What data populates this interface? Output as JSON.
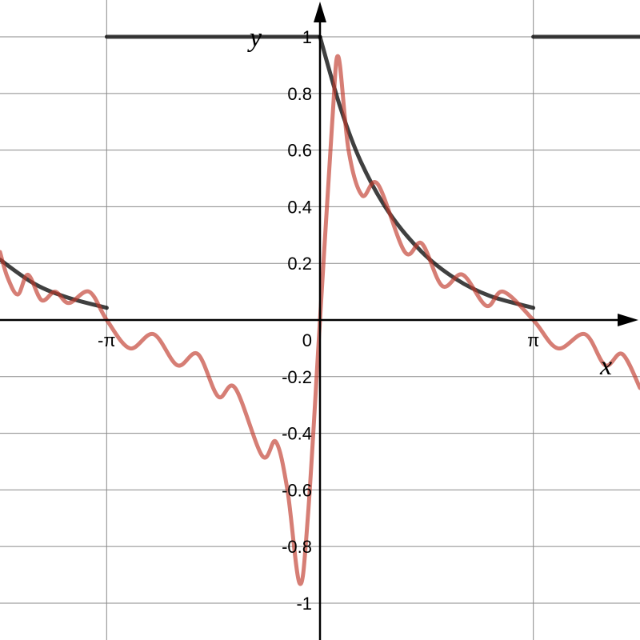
{
  "chart_data": {
    "type": "line",
    "title": "",
    "xlabel": "x",
    "ylabel": "y",
    "xlim": [
      -4.712,
      4.712
    ],
    "ylim": [
      -1.13,
      1.13
    ],
    "grid": true,
    "colors": {
      "series_target": "#000000",
      "series_approx": "#c0392b"
    },
    "x_ticks": [
      {
        "value": -3.14159,
        "label": "-π"
      },
      {
        "value": 3.14159,
        "label": "π"
      }
    ],
    "origin_label": "0",
    "y_ticks": [
      {
        "value": 1,
        "label": "1"
      },
      {
        "value": 0.8,
        "label": "0.8"
      },
      {
        "value": 0.6,
        "label": "0.6"
      },
      {
        "value": 0.4,
        "label": "0.4"
      },
      {
        "value": 0.2,
        "label": "0.2"
      },
      {
        "value": -0.2,
        "label": "-0.2"
      },
      {
        "value": -0.4,
        "label": "-0.4"
      },
      {
        "value": -0.6,
        "label": "-0.6"
      },
      {
        "value": -0.8,
        "label": "-0.8"
      },
      {
        "value": -1,
        "label": "-1"
      }
    ],
    "series": [
      {
        "style": "dark solid, periodic with period 2π",
        "points": [
          [
            -4.712,
            0.213
          ],
          [
            -4.2,
            0.127
          ],
          [
            -3.7,
            0.078
          ],
          [
            -3.14,
            0.043
          ],
          [
            -3.14,
            1.0
          ],
          [
            0,
            1.0
          ],
          [
            0,
            1.0
          ],
          [
            0.3,
            0.75
          ],
          [
            0.6,
            0.56
          ],
          [
            1.0,
            0.385
          ],
          [
            1.5,
            0.24
          ],
          [
            2.0,
            0.145
          ],
          [
            2.5,
            0.085
          ],
          [
            3.14,
            0.043
          ],
          [
            3.14,
            1.0
          ],
          [
            4.712,
            1.0
          ]
        ]
      },
      {
        "style": "red smooth, oscillating approximation",
        "points": [
          [
            -4.712,
            0.24
          ],
          [
            -4.6,
            0.15
          ],
          [
            -4.45,
            0.09
          ],
          [
            -4.3,
            0.16
          ],
          [
            -4.1,
            0.07
          ],
          [
            -3.9,
            0.1
          ],
          [
            -3.7,
            0.06
          ],
          [
            -3.4,
            0.1
          ],
          [
            -3.14,
            0.0
          ],
          [
            -2.8,
            -0.1
          ],
          [
            -2.45,
            -0.05
          ],
          [
            -2.1,
            -0.16
          ],
          [
            -1.8,
            -0.12
          ],
          [
            -1.5,
            -0.27
          ],
          [
            -1.25,
            -0.24
          ],
          [
            -0.85,
            -0.48
          ],
          [
            -0.65,
            -0.43
          ],
          [
            -0.48,
            -0.6
          ],
          [
            -0.3,
            -0.93
          ],
          [
            -0.18,
            -0.7
          ],
          [
            0.0,
            0.0
          ],
          [
            0.18,
            0.7
          ],
          [
            0.27,
            0.93
          ],
          [
            0.42,
            0.6
          ],
          [
            0.62,
            0.44
          ],
          [
            0.85,
            0.48
          ],
          [
            1.25,
            0.24
          ],
          [
            1.5,
            0.27
          ],
          [
            1.8,
            0.12
          ],
          [
            2.1,
            0.16
          ],
          [
            2.45,
            0.05
          ],
          [
            2.7,
            0.1
          ],
          [
            3.14,
            0.0
          ],
          [
            3.5,
            -0.1
          ],
          [
            3.9,
            -0.05
          ],
          [
            4.2,
            -0.16
          ],
          [
            4.45,
            -0.12
          ],
          [
            4.712,
            -0.24
          ]
        ]
      }
    ]
  }
}
